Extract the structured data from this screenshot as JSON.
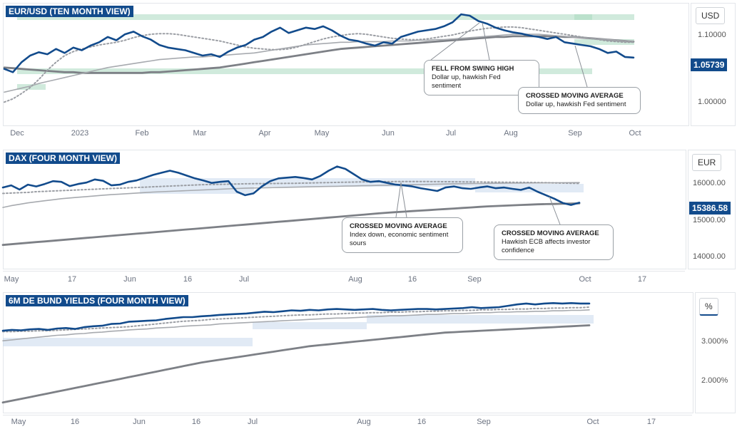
{
  "colors": {
    "price": "#124b8c",
    "ma_dotted": "#9b9ea4",
    "ma_light": "#a7aaaf",
    "ma_dark": "#7d8086",
    "band": "#a9d8bf",
    "band_blue": "#c9d8ec"
  },
  "chart_data": [
    {
      "type": "line",
      "title": "EUR/USD (TEN MONTH VIEW)",
      "unit": "USD",
      "current_label": "1.05739",
      "y_ticks": [
        "1.10000",
        "1.00000"
      ],
      "y_tick_values": [
        1.1,
        1.0
      ],
      "ylim": [
        0.955,
        1.135
      ],
      "x_ticks": [
        "Dec",
        "2023",
        "Feb",
        "Mar",
        "Apr",
        "May",
        "Jun",
        "Jul",
        "Aug",
        "Sep",
        "Oct"
      ],
      "series": [
        {
          "name": "EUR/USD",
          "values": [
            1.04,
            1.035,
            1.05,
            1.06,
            1.065,
            1.062,
            1.07,
            1.064,
            1.072,
            1.068,
            1.075,
            1.08,
            1.088,
            1.083,
            1.092,
            1.096,
            1.089,
            1.084,
            1.076,
            1.072,
            1.07,
            1.068,
            1.064,
            1.06,
            1.062,
            1.058,
            1.066,
            1.072,
            1.076,
            1.084,
            1.088,
            1.096,
            1.102,
            1.094,
            1.098,
            1.102,
            1.1,
            1.104,
            1.098,
            1.09,
            1.084,
            1.082,
            1.078,
            1.075,
            1.08,
            1.078,
            1.088,
            1.092,
            1.096,
            1.098,
            1.1,
            1.104,
            1.11,
            1.122,
            1.12,
            1.112,
            1.108,
            1.102,
            1.098,
            1.095,
            1.093,
            1.09,
            1.088,
            1.085,
            1.088,
            1.08,
            1.078,
            1.076,
            1.074,
            1.07,
            1.064,
            1.066,
            1.058,
            1.057
          ]
        },
        {
          "name": "MA dotted",
          "values": [
            0.99,
            0.995,
            1.003,
            1.012,
            1.024,
            1.038,
            1.05,
            1.06,
            1.066,
            1.07,
            1.073,
            1.076,
            1.078,
            1.08,
            1.083,
            1.087,
            1.09,
            1.092,
            1.093,
            1.093,
            1.092,
            1.09,
            1.088,
            1.086,
            1.084,
            1.082,
            1.079,
            1.076,
            1.073,
            1.071,
            1.07,
            1.069,
            1.069,
            1.07,
            1.073,
            1.077,
            1.081,
            1.085,
            1.088,
            1.09,
            1.092,
            1.093,
            1.092,
            1.09,
            1.088,
            1.086,
            1.085,
            1.084,
            1.084,
            1.085,
            1.087,
            1.089,
            1.091,
            1.094,
            1.097,
            1.099,
            1.101,
            1.102,
            1.103,
            1.103,
            1.102,
            1.1,
            1.098,
            1.096,
            1.094,
            1.092,
            1.09,
            1.088,
            1.086,
            1.084,
            1.082,
            1.081,
            1.08,
            1.08
          ]
        },
        {
          "name": "MA light",
          "values": [
            1.005,
            1.008,
            1.011,
            1.014,
            1.018,
            1.021,
            1.024,
            1.027,
            1.03,
            1.033,
            1.036,
            1.039,
            1.042,
            1.044,
            1.046,
            1.048,
            1.05,
            1.052,
            1.054,
            1.055,
            1.056,
            1.057,
            1.058,
            1.058,
            1.059,
            1.06,
            1.061,
            1.062,
            1.063,
            1.064,
            1.066,
            1.068,
            1.07,
            1.072,
            1.074,
            1.076,
            1.077,
            1.078,
            1.079,
            1.08,
            1.08,
            1.081,
            1.081,
            1.081,
            1.081,
            1.082,
            1.082,
            1.082,
            1.083,
            1.083,
            1.084,
            1.084,
            1.085,
            1.086,
            1.087,
            1.088,
            1.089,
            1.09,
            1.091,
            1.092,
            1.092,
            1.092,
            1.092,
            1.091,
            1.09,
            1.089,
            1.088,
            1.087,
            1.086,
            1.085,
            1.084,
            1.083,
            1.082,
            1.082
          ]
        },
        {
          "name": "MA dark",
          "values": [
            1.042,
            1.041,
            1.04,
            1.039,
            1.038,
            1.037,
            1.036,
            1.035,
            1.035,
            1.034,
            1.034,
            1.034,
            1.034,
            1.034,
            1.034,
            1.034,
            1.034,
            1.035,
            1.035,
            1.036,
            1.037,
            1.038,
            1.039,
            1.04,
            1.041,
            1.042,
            1.044,
            1.046,
            1.048,
            1.05,
            1.052,
            1.054,
            1.056,
            1.058,
            1.06,
            1.062,
            1.064,
            1.066,
            1.068,
            1.07,
            1.071,
            1.072,
            1.073,
            1.074,
            1.075,
            1.076,
            1.077,
            1.078,
            1.079,
            1.08,
            1.081,
            1.082,
            1.083,
            1.084,
            1.085,
            1.086,
            1.087,
            1.088,
            1.088,
            1.089,
            1.089,
            1.089,
            1.089,
            1.089,
            1.089,
            1.088,
            1.088,
            1.087,
            1.086,
            1.085,
            1.084,
            1.083,
            1.082,
            1.081
          ]
        }
      ],
      "callouts": [
        {
          "heading": "FELL FROM SWING HIGH",
          "text": "Dollar up, hawkish Fed sentiment"
        },
        {
          "heading": "CROSSED MOVING AVERAGE",
          "text": "Dollar up, hawkish Fed sentiment"
        }
      ]
    },
    {
      "type": "line",
      "title": "DAX (FOUR MONTH VIEW)",
      "unit": "EUR",
      "current_label": "15386.58",
      "y_ticks": [
        "16000.00",
        "15000.00",
        "14000.00"
      ],
      "y_tick_values": [
        16000,
        15000,
        14000
      ],
      "ylim": [
        13400,
        16900
      ],
      "x_ticks": [
        "May",
        "17",
        "Jun",
        "16",
        "Jul",
        "Aug",
        "16",
        "Sep",
        "Oct",
        "17"
      ],
      "series": [
        {
          "name": "DAX",
          "values": [
            15820,
            15880,
            15760,
            15900,
            15850,
            15920,
            16000,
            15980,
            15860,
            15920,
            15960,
            16050,
            16010,
            15880,
            15900,
            15980,
            16020,
            16100,
            16180,
            16240,
            16300,
            16240,
            16160,
            16080,
            16020,
            15950,
            15980,
            16000,
            15700,
            15600,
            15650,
            15850,
            16000,
            16080,
            16100,
            16120,
            16090,
            16050,
            16150,
            16300,
            16420,
            16350,
            16200,
            16050,
            15980,
            16000,
            15950,
            15900,
            15880,
            15850,
            15800,
            15760,
            15720,
            15820,
            15850,
            15800,
            15780,
            15820,
            15850,
            15800,
            15820,
            15780,
            15750,
            15820,
            15700,
            15600,
            15500,
            15380,
            15320,
            15387
          ]
        },
        {
          "name": "MA dotted",
          "values": [
            15650,
            15660,
            15670,
            15680,
            15700,
            15710,
            15720,
            15730,
            15740,
            15750,
            15760,
            15770,
            15780,
            15790,
            15800,
            15810,
            15820,
            15830,
            15840,
            15850,
            15860,
            15870,
            15880,
            15890,
            15900,
            15905,
            15910,
            15915,
            15920,
            15925,
            15930,
            15932,
            15934,
            15936,
            15938,
            15940,
            15945,
            15950,
            15955,
            15960,
            15965,
            15970,
            15975,
            15980,
            15982,
            15984,
            15986,
            15988,
            15990,
            15990,
            15990,
            15988,
            15986,
            15984,
            15982,
            15980,
            15978,
            15976,
            15974,
            15972,
            15970,
            15968,
            15966,
            15964,
            15960,
            15955,
            15950,
            15945,
            15940,
            15935
          ]
        },
        {
          "name": "MA light",
          "values": [
            15250,
            15300,
            15340,
            15380,
            15410,
            15440,
            15470,
            15500,
            15520,
            15540,
            15560,
            15580,
            15600,
            15615,
            15630,
            15645,
            15660,
            15675,
            15690,
            15700,
            15710,
            15720,
            15730,
            15740,
            15750,
            15760,
            15770,
            15780,
            15790,
            15800,
            15805,
            15810,
            15815,
            15820,
            15825,
            15830,
            15835,
            15840,
            15845,
            15850,
            15855,
            15860,
            15865,
            15870,
            15875,
            15880,
            15885,
            15890,
            15895,
            15900,
            15905,
            15910,
            15915,
            15920,
            15925,
            15928,
            15931,
            15934,
            15937,
            15940,
            15942,
            15944,
            15946,
            15948,
            15950,
            15952,
            15954,
            15956,
            15958,
            15960
          ]
        },
        {
          "name": "MA dark",
          "values": [
            14180,
            14200,
            14220,
            14240,
            14260,
            14280,
            14300,
            14320,
            14340,
            14360,
            14380,
            14400,
            14420,
            14440,
            14460,
            14480,
            14500,
            14520,
            14540,
            14560,
            14580,
            14600,
            14620,
            14640,
            14660,
            14680,
            14700,
            14720,
            14740,
            14760,
            14780,
            14800,
            14820,
            14840,
            14860,
            14880,
            14900,
            14920,
            14940,
            14960,
            14980,
            15000,
            15020,
            15040,
            15060,
            15080,
            15100,
            15115,
            15130,
            15145,
            15160,
            15175,
            15190,
            15205,
            15220,
            15235,
            15250,
            15265,
            15280,
            15290,
            15300,
            15310,
            15320,
            15330,
            15340,
            15345,
            15350,
            15355,
            15360,
            15365
          ]
        }
      ],
      "callouts": [
        {
          "heading": "CROSSED MOVING AVERAGE",
          "text": "Index down, economic sentiment sours"
        },
        {
          "heading": "CROSSED MOVING AVERAGE",
          "text": "Hawkish ECB affects investor confidence"
        }
      ]
    },
    {
      "type": "line",
      "title": "6M DE BUND YIELDS (FOUR MONTH VIEW)",
      "unit": "%",
      "y_ticks": [
        "3.000%",
        "2.000%"
      ],
      "y_tick_values": [
        3.0,
        2.0
      ],
      "ylim": [
        1.25,
        3.95
      ],
      "x_ticks": [
        "May",
        "16",
        "Jun",
        "16",
        "Jul",
        "Aug",
        "16",
        "Sep",
        "Oct",
        "17"
      ],
      "series": [
        {
          "name": "Yield",
          "values": [
            3.1,
            3.12,
            3.11,
            3.13,
            3.14,
            3.12,
            3.15,
            3.16,
            3.14,
            3.18,
            3.2,
            3.21,
            3.25,
            3.26,
            3.3,
            3.31,
            3.32,
            3.33,
            3.36,
            3.38,
            3.4,
            3.4,
            3.42,
            3.43,
            3.45,
            3.46,
            3.47,
            3.48,
            3.5,
            3.52,
            3.51,
            3.53,
            3.55,
            3.54,
            3.56,
            3.55,
            3.57,
            3.58,
            3.57,
            3.56,
            3.57,
            3.58,
            3.56,
            3.55,
            3.56,
            3.57,
            3.58,
            3.58,
            3.57,
            3.58,
            3.59,
            3.6,
            3.62,
            3.6,
            3.61,
            3.62,
            3.65,
            3.68,
            3.7,
            3.68,
            3.7,
            3.71,
            3.7,
            3.71,
            3.7,
            3.7
          ]
        },
        {
          "name": "MA dotted",
          "values": [
            3.08,
            3.08,
            3.09,
            3.09,
            3.1,
            3.1,
            3.11,
            3.12,
            3.13,
            3.14,
            3.15,
            3.16,
            3.17,
            3.18,
            3.19,
            3.21,
            3.23,
            3.25,
            3.27,
            3.29,
            3.31,
            3.32,
            3.33,
            3.35,
            3.36,
            3.37,
            3.38,
            3.39,
            3.4,
            3.41,
            3.42,
            3.43,
            3.44,
            3.45,
            3.45,
            3.46,
            3.47,
            3.47,
            3.48,
            3.49,
            3.49,
            3.5,
            3.5,
            3.51,
            3.51,
            3.52,
            3.52,
            3.53,
            3.53,
            3.54,
            3.54,
            3.55,
            3.55,
            3.56,
            3.56,
            3.57,
            3.57,
            3.58,
            3.58,
            3.59,
            3.59,
            3.6,
            3.6,
            3.61,
            3.61,
            3.62
          ]
        },
        {
          "name": "MA light",
          "values": [
            2.88,
            2.9,
            2.92,
            2.94,
            2.96,
            2.98,
            3.0,
            3.01,
            3.03,
            3.04,
            3.06,
            3.07,
            3.09,
            3.1,
            3.12,
            3.13,
            3.14,
            3.16,
            3.17,
            3.18,
            3.2,
            3.21,
            3.22,
            3.23,
            3.25,
            3.26,
            3.27,
            3.28,
            3.29,
            3.3,
            3.31,
            3.32,
            3.33,
            3.34,
            3.35,
            3.36,
            3.37,
            3.38,
            3.38,
            3.39,
            3.4,
            3.41,
            3.42,
            3.43,
            3.43,
            3.44,
            3.45,
            3.46,
            3.46,
            3.47,
            3.48,
            3.48,
            3.49,
            3.5,
            3.5,
            3.51,
            3.51,
            3.52,
            3.52,
            3.53,
            3.53,
            3.54,
            3.54,
            3.55,
            3.55,
            3.56
          ]
        },
        {
          "name": "MA dark",
          "values": [
            1.52,
            1.56,
            1.6,
            1.64,
            1.68,
            1.72,
            1.76,
            1.8,
            1.84,
            1.88,
            1.92,
            1.96,
            2.0,
            2.04,
            2.08,
            2.12,
            2.16,
            2.2,
            2.24,
            2.28,
            2.32,
            2.36,
            2.4,
            2.43,
            2.46,
            2.49,
            2.52,
            2.55,
            2.58,
            2.61,
            2.64,
            2.67,
            2.7,
            2.73,
            2.76,
            2.78,
            2.8,
            2.82,
            2.84,
            2.86,
            2.88,
            2.9,
            2.92,
            2.94,
            2.96,
            2.98,
            3.0,
            3.02,
            3.04,
            3.06,
            3.07,
            3.08,
            3.09,
            3.1,
            3.11,
            3.12,
            3.13,
            3.14,
            3.15,
            3.16,
            3.17,
            3.18,
            3.19,
            3.2,
            3.21,
            3.22
          ]
        }
      ]
    }
  ]
}
